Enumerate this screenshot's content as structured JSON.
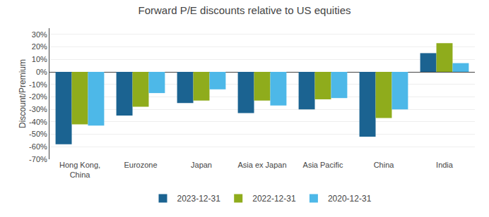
{
  "chart_data": {
    "type": "bar",
    "title": "Forward P/E discounts relative to US equities",
    "categories": [
      "Hong Kong,\nChina",
      "Eurozone",
      "Japan",
      "Asia ex Japan",
      "Asia Pacific",
      "China",
      "India"
    ],
    "series": [
      {
        "name": "2023-12-31",
        "color": "#1b6391",
        "values": [
          -58,
          -35,
          -25,
          -33,
          -30,
          -52,
          15
        ]
      },
      {
        "name": "2022-12-31",
        "color": "#8fac1c",
        "values": [
          -42,
          -28,
          -23,
          -23,
          -22,
          -37,
          23
        ]
      },
      {
        "name": "2020-12-31",
        "color": "#4db8e8",
        "values": [
          -43,
          -17,
          -14,
          -27,
          -21,
          -30,
          7
        ]
      }
    ],
    "ylabel": "Discount/Premium",
    "ylim": [
      -70,
      35
    ],
    "yticks": [
      {
        "value": -70,
        "label": "-70%"
      },
      {
        "value": -60,
        "label": "-60%"
      },
      {
        "value": -50,
        "label": "-50%"
      },
      {
        "value": -40,
        "label": "-40%"
      },
      {
        "value": -30,
        "label": "-30%"
      },
      {
        "value": -20,
        "label": "-20%"
      },
      {
        "value": -10,
        "label": "-10%"
      },
      {
        "value": 0,
        "label": "0%"
      },
      {
        "value": 10,
        "label": "10%"
      },
      {
        "value": 20,
        "label": "20%"
      },
      {
        "value": 30,
        "label": "30%"
      }
    ],
    "grid": true,
    "legend": "bottom"
  }
}
